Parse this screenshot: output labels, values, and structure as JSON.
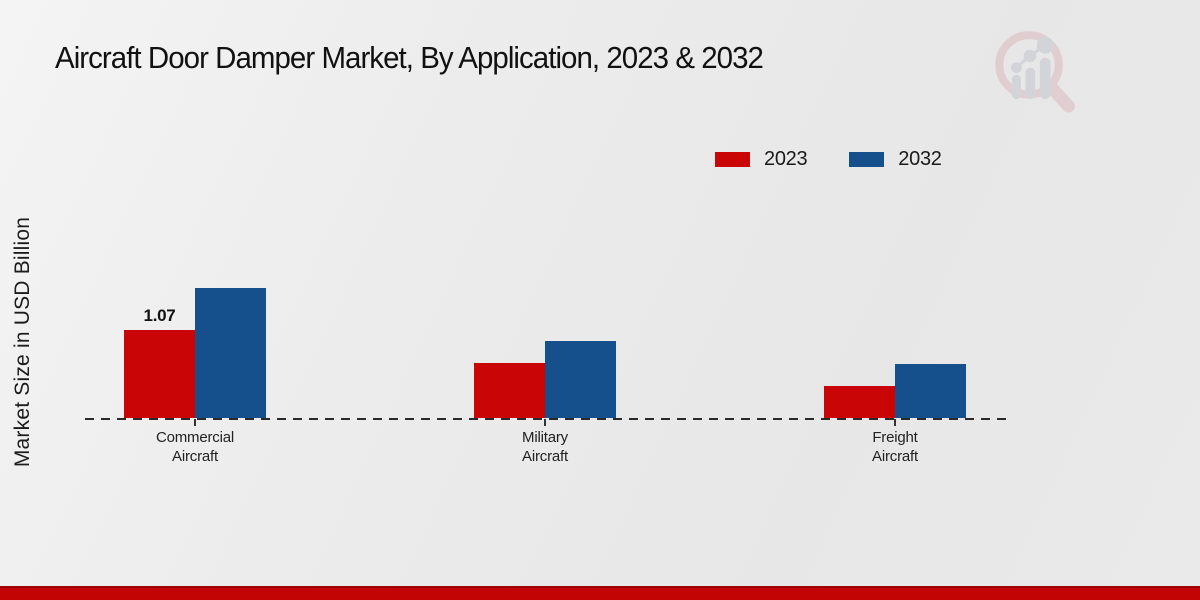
{
  "title": "Aircraft Door Damper Market, By Application, 2023 & 2032",
  "y_axis_label": "Market Size in USD Billion",
  "legend": [
    {
      "label": "2023",
      "color": "#c90505"
    },
    {
      "label": "2032",
      "color": "#15508c"
    }
  ],
  "colors": {
    "series_2023": "#c90505",
    "series_2032": "#15508c",
    "footer_strip": "#c20404",
    "baseline": "#2a2a2a",
    "background": "#eaeaea",
    "watermark_pink": "#dcb9be",
    "watermark_gray": "#c3c6cb"
  },
  "chart_data": {
    "type": "bar",
    "categories": [
      "Commercial Aircraft",
      "Military Aircraft",
      "Freight Aircraft"
    ],
    "series": [
      {
        "name": "2023",
        "color": "#c90505",
        "values": [
          1.07,
          0.67,
          0.39
        ],
        "data_labels": [
          "1.07",
          "",
          ""
        ]
      },
      {
        "name": "2032",
        "color": "#15508c",
        "values": [
          1.58,
          0.94,
          0.66
        ],
        "data_labels": [
          "",
          "",
          ""
        ]
      }
    ],
    "title": "Aircraft Door Damper Market, By Application, 2023 & 2032",
    "xlabel": "",
    "ylabel": "Market Size in USD Billion",
    "ylim": [
      0,
      5.1
    ],
    "grid": false,
    "baseline_style": "dashed",
    "legend_position": "top-right",
    "y_axis_ticks_visible": false
  },
  "watermark": {
    "name": "market-research-future-logo"
  }
}
